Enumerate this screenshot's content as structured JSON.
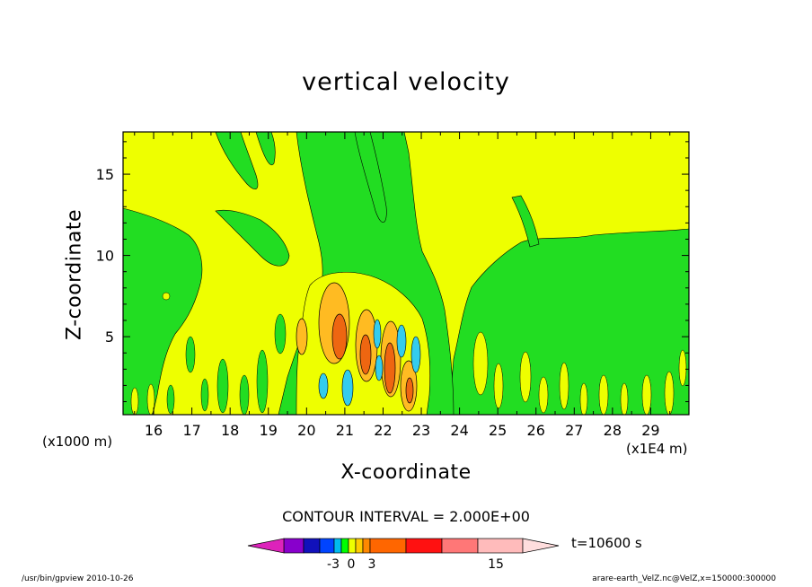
{
  "chart_data": {
    "type": "heatmap",
    "title": "vertical velocity",
    "xlabel": "X-coordinate",
    "ylabel": "Z-coordinate",
    "x_unit_label": "(x1E4 m)",
    "y_unit_label": "(x1000 m)",
    "xlim": [
      15.2,
      30.0
    ],
    "ylim": [
      0.2,
      17.6
    ],
    "x_ticks": [
      "16",
      "17",
      "18",
      "19",
      "20",
      "21",
      "22",
      "23",
      "24",
      "25",
      "26",
      "27",
      "28",
      "29"
    ],
    "y_ticks": [
      "5",
      "10",
      "15"
    ],
    "contour_interval_label": "CONTOUR INTERVAL = 2.000E+00",
    "time_label": "t=10600 s",
    "colorbar": {
      "tick_labels": [
        "-3",
        "0",
        "3",
        "15"
      ],
      "colors": [
        "#dd22bb",
        "#8800cc",
        "#1111bb",
        "#0044ff",
        "#00bbee",
        "#00ff00",
        "#eeff00",
        "#ffcc00",
        "#ff8800",
        "#ff6600",
        "#ff1111",
        "#ff7777",
        "#ffbbbb",
        "#ffdddd"
      ]
    },
    "regions": [
      {
        "level": "positive-weak",
        "color": "#eeff00"
      },
      {
        "level": "near-zero",
        "color": "#22dd22"
      },
      {
        "level": "positive-moderate",
        "color": "#ffbb22"
      },
      {
        "level": "positive-strong",
        "color": "#ee6611"
      },
      {
        "level": "negative",
        "color": "#33ccee"
      }
    ]
  },
  "footer": {
    "left": "/usr/bin/gpview   2010-10-26",
    "right": "arare-earth_VelZ.nc@VelZ,x=150000:300000"
  }
}
